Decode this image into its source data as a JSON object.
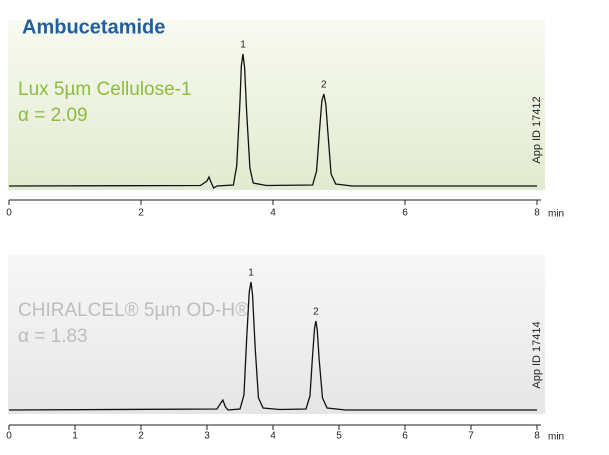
{
  "chart_data": [
    {
      "type": "line",
      "title": "Ambucetamide",
      "annotations": [
        "Lux 5µm Cellulose-1",
        "α = 2.09"
      ],
      "side_label": "App ID 17412",
      "x_label": "min",
      "color": "#111111",
      "background": [
        "#f8faf1",
        "#e2ead0"
      ],
      "text_color": "#8dbb3e",
      "xlim": [
        0,
        8
      ],
      "xticks": [
        0,
        2,
        4,
        6,
        8
      ],
      "ylim": [
        0,
        140
      ],
      "x": [
        0,
        2.9,
        3.0,
        3.03,
        3.06,
        3.1,
        3.15,
        3.4,
        3.45,
        3.5,
        3.52,
        3.545,
        3.57,
        3.6,
        3.65,
        3.7,
        3.9,
        4.6,
        4.66,
        4.71,
        4.74,
        4.77,
        4.8,
        4.83,
        4.88,
        4.95,
        5.2,
        8
      ],
      "series": [
        {
          "name": "trace",
          "values": [
            0,
            0.5,
            5,
            9,
            4,
            -2,
            0,
            1,
            20,
            85,
            120,
            132,
            118,
            75,
            18,
            3,
            0.5,
            1,
            15,
            60,
            85,
            92,
            82,
            55,
            12,
            2,
            0,
            0
          ]
        }
      ],
      "peak_labels": [
        {
          "label": "1",
          "x": 3.545,
          "y": 132
        },
        {
          "label": "2",
          "x": 4.77,
          "y": 92
        }
      ]
    },
    {
      "type": "line",
      "annotations": [
        "CHIRALCEL® 5µm OD-H®",
        "α = 1.83"
      ],
      "side_label": "App ID 17414",
      "x_label": "min",
      "color": "#111111",
      "background": [
        "#f7f7f7",
        "#e6e6e6"
      ],
      "text_color": "#bdbdbd",
      "xlim": [
        0,
        8
      ],
      "xticks": [
        0,
        1,
        2,
        3,
        4,
        5,
        6,
        7,
        8
      ],
      "ylim": [
        0,
        140
      ],
      "x": [
        0,
        3.15,
        3.2,
        3.24,
        3.28,
        3.32,
        3.5,
        3.56,
        3.6,
        3.64,
        3.667,
        3.69,
        3.73,
        3.78,
        3.85,
        4.1,
        4.5,
        4.56,
        4.6,
        4.63,
        4.65,
        4.67,
        4.7,
        4.75,
        4.82,
        5.1,
        8
      ],
      "series": [
        {
          "name": "trace",
          "values": [
            0,
            1,
            6,
            10,
            3,
            0,
            1,
            15,
            70,
            118,
            128,
            115,
            62,
            12,
            2,
            0.5,
            1,
            14,
            55,
            82,
            89,
            80,
            50,
            12,
            2,
            0,
            0
          ]
        }
      ],
      "peak_labels": [
        {
          "label": "1",
          "x": 3.667,
          "y": 128
        },
        {
          "label": "2",
          "x": 4.65,
          "y": 89
        }
      ]
    }
  ]
}
